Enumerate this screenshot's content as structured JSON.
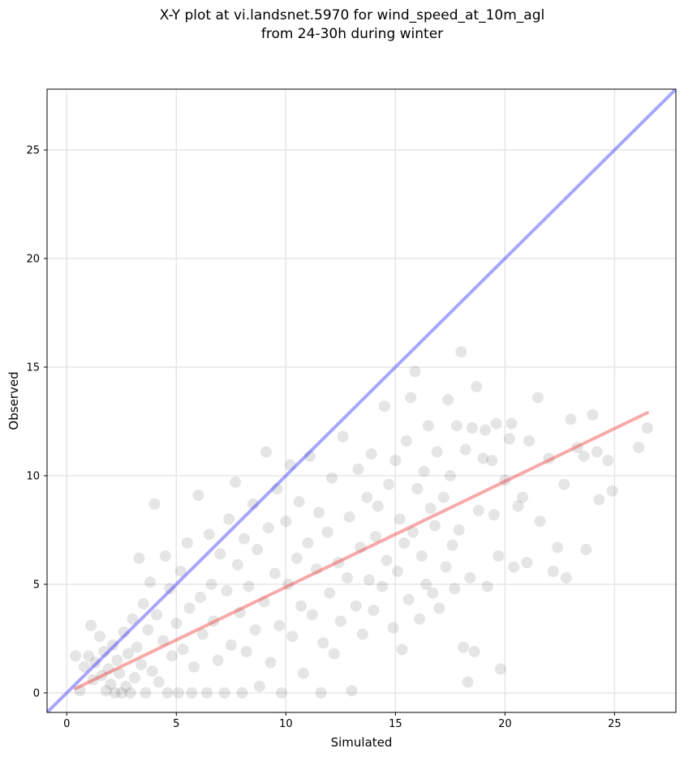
{
  "chart_data": {
    "type": "scatter",
    "title": "X-Y plot at vi.landsnet.5970 for wind_speed_at_10m_agl\nfrom 24-30h during winter",
    "xlabel": "Simulated",
    "ylabel": "Observed",
    "xlim": [
      -0.9,
      27.8
    ],
    "ylim": [
      -0.9,
      27.8
    ],
    "x_ticks": [
      0,
      5,
      10,
      15,
      20,
      25
    ],
    "y_ticks": [
      0,
      5,
      10,
      15,
      20,
      25
    ],
    "grid": true,
    "point_color": "#000000",
    "point_opacity": 0.1,
    "reference_line": {
      "type": "1:1",
      "color": "#0000ff",
      "opacity": 0.35,
      "from": [
        -0.9,
        -0.9
      ],
      "to": [
        27.8,
        27.8
      ]
    },
    "fit_line": {
      "color": "#f04040",
      "opacity": 0.45,
      "from": [
        0.4,
        0.2
      ],
      "to": [
        26.5,
        12.9
      ]
    },
    "points": [
      [
        0.4,
        1.7
      ],
      [
        0.6,
        0.1
      ],
      [
        0.8,
        1.2
      ],
      [
        1.0,
        1.7
      ],
      [
        1.1,
        3.1
      ],
      [
        1.2,
        0.6
      ],
      [
        1.3,
        1.4
      ],
      [
        1.5,
        2.6
      ],
      [
        1.6,
        0.8
      ],
      [
        1.7,
        1.9
      ],
      [
        1.8,
        0.1
      ],
      [
        1.9,
        1.1
      ],
      [
        2.0,
        0.4
      ],
      [
        2.1,
        2.2
      ],
      [
        2.2,
        0.0
      ],
      [
        2.3,
        1.5
      ],
      [
        2.4,
        0.9
      ],
      [
        2.5,
        0.0
      ],
      [
        2.6,
        2.8
      ],
      [
        2.7,
        0.3
      ],
      [
        2.8,
        1.8
      ],
      [
        2.9,
        0.0
      ],
      [
        3.0,
        3.4
      ],
      [
        3.1,
        0.7
      ],
      [
        3.2,
        2.1
      ],
      [
        3.3,
        6.2
      ],
      [
        3.4,
        1.3
      ],
      [
        3.5,
        4.1
      ],
      [
        3.6,
        0.0
      ],
      [
        3.7,
        2.9
      ],
      [
        3.8,
        5.1
      ],
      [
        3.9,
        1.0
      ],
      [
        4.0,
        8.7
      ],
      [
        4.1,
        3.6
      ],
      [
        4.2,
        0.5
      ],
      [
        4.4,
        2.4
      ],
      [
        4.5,
        6.3
      ],
      [
        4.6,
        0.0
      ],
      [
        4.7,
        4.8
      ],
      [
        4.8,
        1.7
      ],
      [
        5.0,
        3.2
      ],
      [
        5.1,
        0.0
      ],
      [
        5.2,
        5.6
      ],
      [
        5.3,
        2.0
      ],
      [
        5.5,
        6.9
      ],
      [
        5.6,
        3.9
      ],
      [
        5.7,
        0.0
      ],
      [
        5.8,
        1.2
      ],
      [
        6.0,
        9.1
      ],
      [
        6.1,
        4.4
      ],
      [
        6.2,
        2.7
      ],
      [
        6.4,
        0.0
      ],
      [
        6.5,
        7.3
      ],
      [
        6.6,
        5.0
      ],
      [
        6.7,
        3.3
      ],
      [
        6.9,
        1.5
      ],
      [
        7.0,
        6.4
      ],
      [
        7.2,
        0.0
      ],
      [
        7.3,
        4.7
      ],
      [
        7.4,
        8.0
      ],
      [
        7.5,
        2.2
      ],
      [
        7.7,
        9.7
      ],
      [
        7.8,
        5.9
      ],
      [
        7.9,
        3.7
      ],
      [
        8.0,
        0.0
      ],
      [
        8.1,
        7.1
      ],
      [
        8.2,
        1.9
      ],
      [
        8.3,
        4.9
      ],
      [
        8.5,
        8.7
      ],
      [
        8.6,
        2.9
      ],
      [
        8.7,
        6.6
      ],
      [
        8.8,
        0.3
      ],
      [
        9.0,
        4.2
      ],
      [
        9.1,
        11.1
      ],
      [
        9.2,
        7.6
      ],
      [
        9.3,
        1.4
      ],
      [
        9.5,
        5.5
      ],
      [
        9.6,
        9.4
      ],
      [
        9.7,
        3.1
      ],
      [
        9.8,
        0.0
      ],
      [
        10.0,
        7.9
      ],
      [
        10.1,
        5.0
      ],
      [
        10.2,
        10.5
      ],
      [
        10.3,
        2.6
      ],
      [
        10.5,
        6.2
      ],
      [
        10.6,
        8.8
      ],
      [
        10.7,
        4.0
      ],
      [
        10.8,
        0.9
      ],
      [
        11.0,
        6.9
      ],
      [
        11.1,
        10.9
      ],
      [
        11.2,
        3.6
      ],
      [
        11.4,
        5.7
      ],
      [
        11.5,
        8.3
      ],
      [
        11.6,
        0.0
      ],
      [
        11.7,
        2.3
      ],
      [
        11.9,
        7.4
      ],
      [
        12.0,
        4.6
      ],
      [
        12.1,
        9.9
      ],
      [
        12.2,
        1.8
      ],
      [
        12.4,
        6.0
      ],
      [
        12.5,
        3.3
      ],
      [
        12.6,
        11.8
      ],
      [
        12.8,
        5.3
      ],
      [
        12.9,
        8.1
      ],
      [
        13.0,
        0.1
      ],
      [
        13.2,
        4.0
      ],
      [
        13.3,
        10.3
      ],
      [
        13.4,
        6.7
      ],
      [
        13.5,
        2.7
      ],
      [
        13.7,
        9.0
      ],
      [
        13.8,
        5.2
      ],
      [
        13.9,
        11.0
      ],
      [
        14.0,
        3.8
      ],
      [
        14.1,
        7.2
      ],
      [
        14.2,
        8.6
      ],
      [
        14.4,
        4.9
      ],
      [
        14.5,
        13.2
      ],
      [
        14.6,
        6.1
      ],
      [
        14.7,
        9.6
      ],
      [
        14.9,
        3.0
      ],
      [
        15.0,
        10.7
      ],
      [
        15.1,
        5.6
      ],
      [
        15.2,
        8.0
      ],
      [
        15.3,
        2.0
      ],
      [
        15.4,
        6.9
      ],
      [
        15.5,
        11.6
      ],
      [
        15.6,
        4.3
      ],
      [
        15.7,
        13.6
      ],
      [
        15.8,
        7.4
      ],
      [
        15.9,
        14.8
      ],
      [
        16.0,
        9.4
      ],
      [
        16.1,
        3.4
      ],
      [
        16.2,
        6.3
      ],
      [
        16.3,
        10.2
      ],
      [
        16.4,
        5.0
      ],
      [
        16.5,
        12.3
      ],
      [
        16.6,
        8.5
      ],
      [
        16.7,
        4.6
      ],
      [
        16.8,
        7.7
      ],
      [
        16.9,
        11.1
      ],
      [
        17.0,
        3.9
      ],
      [
        17.2,
        9.0
      ],
      [
        17.3,
        5.8
      ],
      [
        17.4,
        13.5
      ],
      [
        17.5,
        10.0
      ],
      [
        17.6,
        6.8
      ],
      [
        17.7,
        4.8
      ],
      [
        17.8,
        12.3
      ],
      [
        17.9,
        7.5
      ],
      [
        18.0,
        15.7
      ],
      [
        18.1,
        2.1
      ],
      [
        18.2,
        11.2
      ],
      [
        18.3,
        0.5
      ],
      [
        18.4,
        5.3
      ],
      [
        18.5,
        12.2
      ],
      [
        18.6,
        1.9
      ],
      [
        18.7,
        14.1
      ],
      [
        18.8,
        8.4
      ],
      [
        19.0,
        10.8
      ],
      [
        19.1,
        12.1
      ],
      [
        19.2,
        4.9
      ],
      [
        19.4,
        10.7
      ],
      [
        19.5,
        8.2
      ],
      [
        19.6,
        12.4
      ],
      [
        19.7,
        6.3
      ],
      [
        19.8,
        1.1
      ],
      [
        20.0,
        9.8
      ],
      [
        20.2,
        11.7
      ],
      [
        20.3,
        12.4
      ],
      [
        20.4,
        5.8
      ],
      [
        20.6,
        8.6
      ],
      [
        20.8,
        9.0
      ],
      [
        21.0,
        6.0
      ],
      [
        21.1,
        11.6
      ],
      [
        21.5,
        13.6
      ],
      [
        21.6,
        7.9
      ],
      [
        22.0,
        10.8
      ],
      [
        22.2,
        5.6
      ],
      [
        22.4,
        6.7
      ],
      [
        22.7,
        9.6
      ],
      [
        22.8,
        5.3
      ],
      [
        23.0,
        12.6
      ],
      [
        23.3,
        11.3
      ],
      [
        23.6,
        10.9
      ],
      [
        23.7,
        6.6
      ],
      [
        24.0,
        12.8
      ],
      [
        24.2,
        11.1
      ],
      [
        24.3,
        8.9
      ],
      [
        24.7,
        10.7
      ],
      [
        24.9,
        9.3
      ],
      [
        26.1,
        11.3
      ],
      [
        26.5,
        12.2
      ]
    ]
  }
}
